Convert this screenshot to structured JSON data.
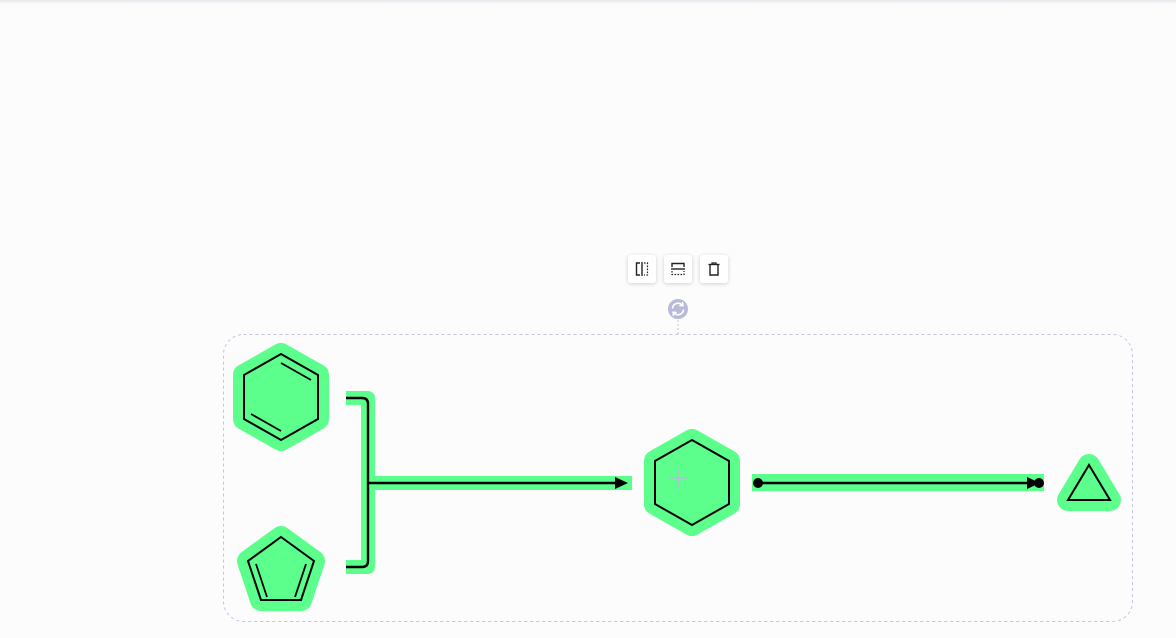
{
  "toolbar": {
    "buttons": [
      {
        "name": "flip-horizontal-button",
        "icon": "flip-horizontal-icon"
      },
      {
        "name": "flip-vertical-button",
        "icon": "flip-vertical-icon"
      },
      {
        "name": "delete-button",
        "icon": "trash-icon"
      }
    ]
  },
  "selection": {
    "rotate_handle_icon": "rotate-icon",
    "center_marker_icon": "plus-icon"
  },
  "reaction": {
    "reactants": [
      "benzene",
      "cyclopentadiene"
    ],
    "intermediate": "cyclohexane",
    "product": "cyclopropane",
    "arrows": [
      "multi-tail-arrow",
      "equilibrium-arrow"
    ]
  },
  "colors": {
    "highlight": "#5cff8c",
    "stroke": "#000000",
    "selection_border": "#c3c5dd",
    "handle": "#b8bad8"
  }
}
